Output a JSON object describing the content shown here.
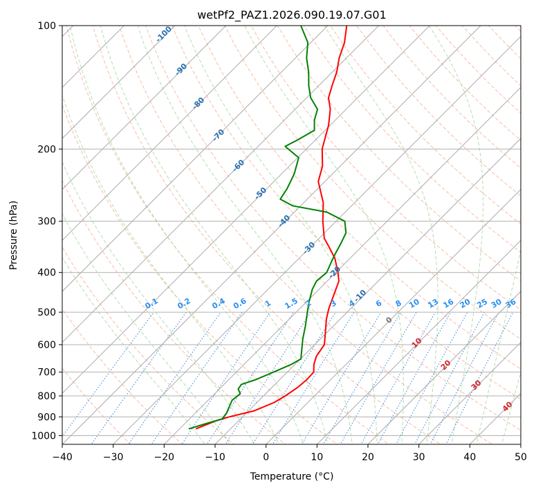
{
  "chart_data": {
    "type": "line",
    "subtype": "skew-t log-p",
    "title": "wetPf2_PAZ1.2026.090.19.07.G01",
    "xlabel": "Temperature (°C)",
    "ylabel": "Pressure (hPa)",
    "xlim": [
      -40,
      50
    ],
    "ylim": [
      1050,
      100
    ],
    "y_scale": "log",
    "grid": true,
    "x_ticks": [
      -40,
      -30,
      -20,
      -10,
      0,
      10,
      20,
      30,
      40,
      50
    ],
    "x_tick_labels": [
      "−40",
      "−30",
      "−20",
      "−10",
      "0",
      "10",
      "20",
      "30",
      "40",
      "50"
    ],
    "y_ticks": [
      100,
      200,
      300,
      400,
      500,
      600,
      700,
      800,
      900,
      1000
    ],
    "y_tick_labels": [
      "100",
      "200",
      "300",
      "400",
      "500",
      "600",
      "700",
      "800",
      "900",
      "1000"
    ],
    "series": [
      {
        "role": "temperature",
        "color": "#ff0000",
        "points": [
          [
            963,
            -16.8
          ],
          [
            920,
            -14.4
          ],
          [
            900,
            -12.6
          ],
          [
            870,
            -8.9
          ],
          [
            830,
            -6.6
          ],
          [
            800,
            -5.7
          ],
          [
            760,
            -4.9
          ],
          [
            730,
            -4.7
          ],
          [
            700,
            -4.8
          ],
          [
            670,
            -6.3
          ],
          [
            640,
            -7.4
          ],
          [
            600,
            -8.1
          ],
          [
            560,
            -10.3
          ],
          [
            520,
            -12.7
          ],
          [
            490,
            -14.3
          ],
          [
            460,
            -15.7
          ],
          [
            420,
            -17.7
          ],
          [
            400,
            -19.6
          ],
          [
            370,
            -22.9
          ],
          [
            345,
            -26.6
          ],
          [
            330,
            -29.0
          ],
          [
            300,
            -32.6
          ],
          [
            270,
            -36.2
          ],
          [
            240,
            -41.3
          ],
          [
            220,
            -43.5
          ],
          [
            200,
            -46.9
          ],
          [
            175,
            -50.3
          ],
          [
            160,
            -53.1
          ],
          [
            150,
            -55.7
          ],
          [
            140,
            -57.4
          ],
          [
            130,
            -59.1
          ],
          [
            120,
            -61.4
          ],
          [
            110,
            -63.4
          ],
          [
            100,
            -66.3
          ]
        ]
      },
      {
        "role": "dewpoint",
        "color": "#008000",
        "points": [
          [
            963,
            -18.2
          ],
          [
            940,
            -16.3
          ],
          [
            910,
            -13.6
          ],
          [
            880,
            -13.9
          ],
          [
            850,
            -14.6
          ],
          [
            820,
            -15.3
          ],
          [
            790,
            -15.0
          ],
          [
            770,
            -16.3
          ],
          [
            750,
            -16.6
          ],
          [
            730,
            -14.7
          ],
          [
            700,
            -12.7
          ],
          [
            670,
            -10.7
          ],
          [
            650,
            -9.9
          ],
          [
            620,
            -11.4
          ],
          [
            580,
            -13.5
          ],
          [
            540,
            -15.5
          ],
          [
            500,
            -17.8
          ],
          [
            470,
            -19.6
          ],
          [
            440,
            -21.3
          ],
          [
            420,
            -22.1
          ],
          [
            400,
            -21.8
          ],
          [
            380,
            -22.8
          ],
          [
            360,
            -23.8
          ],
          [
            340,
            -24.7
          ],
          [
            320,
            -25.8
          ],
          [
            300,
            -28.3
          ],
          [
            285,
            -33.6
          ],
          [
            275,
            -41.6
          ],
          [
            265,
            -45.3
          ],
          [
            250,
            -46.0
          ],
          [
            230,
            -47.5
          ],
          [
            210,
            -49.8
          ],
          [
            197,
            -54.7
          ],
          [
            190,
            -53.5
          ],
          [
            180,
            -52.1
          ],
          [
            170,
            -54.1
          ],
          [
            160,
            -55.6
          ],
          [
            150,
            -59.2
          ],
          [
            140,
            -62.0
          ],
          [
            130,
            -64.6
          ],
          [
            120,
            -67.8
          ],
          [
            110,
            -70.6
          ],
          [
            100,
            -75.3
          ]
        ]
      }
    ],
    "dry_adiabat_labels": [
      "-100",
      "-90",
      "-80",
      "-70",
      "-60",
      "-50",
      "-40",
      "-30",
      "-20",
      "-10"
    ],
    "mixing_ratio_labels": [
      "0.1",
      "0.2",
      "0.4",
      "0.6",
      "1",
      "1.5",
      "2",
      "3",
      "4",
      "6",
      "8",
      "10",
      "13",
      "16",
      "20",
      "25",
      "30",
      "36"
    ],
    "moist_adiabat_labels": [
      "0",
      "10",
      "20",
      "30",
      "40"
    ]
  }
}
